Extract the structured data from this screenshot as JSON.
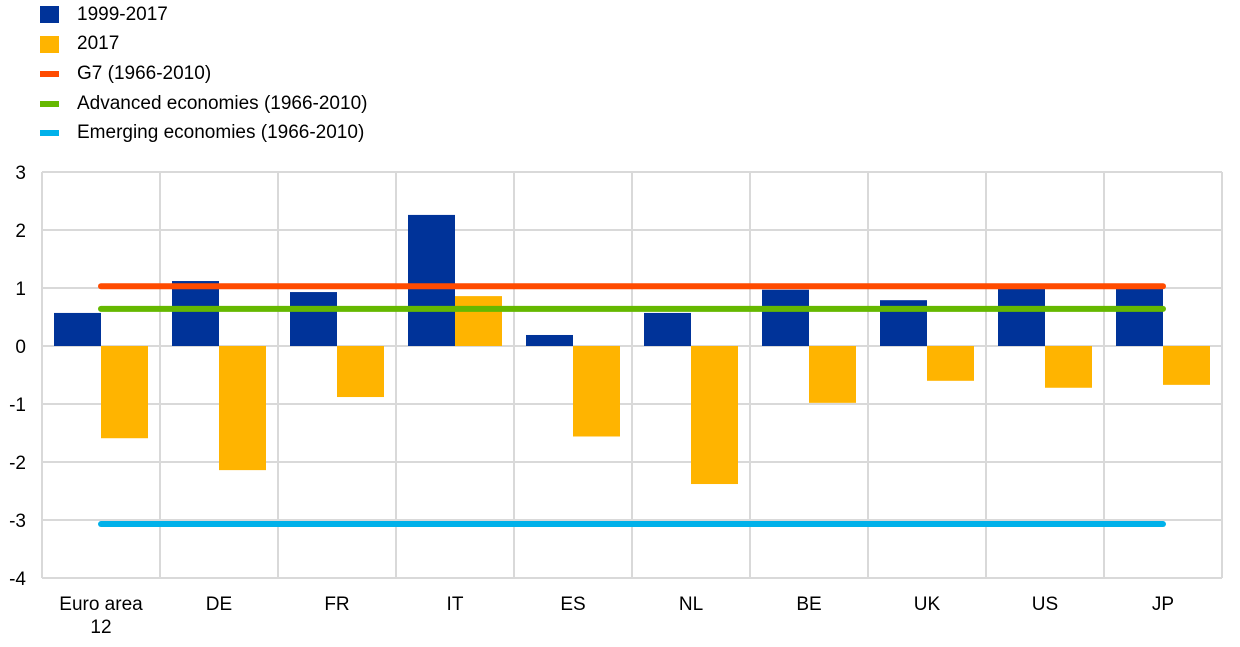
{
  "chart_data": {
    "type": "bar",
    "title": "",
    "xlabel": "",
    "ylabel": "",
    "ylim": [
      -4,
      3
    ],
    "yticks": [
      3,
      2,
      1,
      0,
      -1,
      -2,
      -3,
      -4
    ],
    "grid": true,
    "legend_position": "top-left",
    "categories": [
      "Euro area 12",
      "DE",
      "FR",
      "IT",
      "ES",
      "NL",
      "BE",
      "UK",
      "US",
      "JP"
    ],
    "category_label_lines": [
      [
        "Euro area",
        "12"
      ],
      [
        "DE"
      ],
      [
        "FR"
      ],
      [
        "IT"
      ],
      [
        "ES"
      ],
      [
        "NL"
      ],
      [
        "BE"
      ],
      [
        "UK"
      ],
      [
        "US"
      ],
      [
        "JP"
      ]
    ],
    "series": [
      {
        "name": "1999-2017",
        "kind": "bar",
        "color": "#003399",
        "values": [
          0.57,
          1.12,
          0.93,
          2.26,
          0.19,
          0.57,
          0.97,
          0.79,
          1.02,
          1.02
        ]
      },
      {
        "name": "2017",
        "kind": "bar",
        "color": "#FFB400",
        "values": [
          -1.59,
          -2.14,
          -0.88,
          0.86,
          -1.56,
          -2.38,
          -0.98,
          -0.6,
          -0.72,
          -0.67
        ]
      }
    ],
    "reference_lines": [
      {
        "name": "G7 (1966-2010)",
        "kind": "line",
        "color": "#FF4B00",
        "value": 1.03
      },
      {
        "name": "Advanced economies (1966-2010)",
        "kind": "line",
        "color": "#65B800",
        "value": 0.64
      },
      {
        "name": "Emerging economies (1966-2010)",
        "kind": "line",
        "color": "#00B1EA",
        "value": -3.07
      }
    ]
  },
  "legend": [
    {
      "label": "1999-2017",
      "color": "#003399",
      "shape": "box"
    },
    {
      "label": "2017",
      "color": "#FFB400",
      "shape": "box"
    },
    {
      "label": "G7 (1966-2010)",
      "color": "#FF4B00",
      "shape": "line"
    },
    {
      "label": "Advanced economies (1966-2010)",
      "color": "#65B800",
      "shape": "line"
    },
    {
      "label": "Emerging economies (1966-2010)",
      "color": "#00B1EA",
      "shape": "line"
    }
  ]
}
